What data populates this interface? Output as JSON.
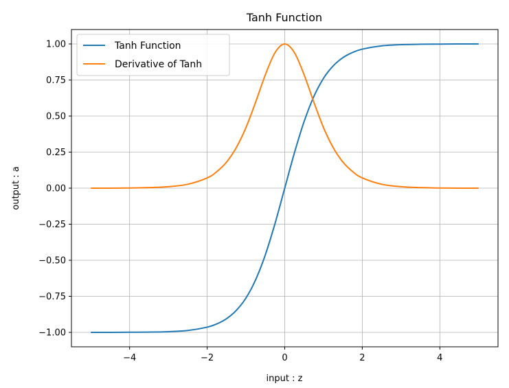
{
  "chart_data": {
    "type": "line",
    "title": "Tanh Function",
    "xlabel": "input : z",
    "ylabel": "output : a",
    "xlim": [
      -5.5,
      5.5
    ],
    "ylim": [
      -1.1,
      1.1
    ],
    "xticks": [
      -4,
      -2,
      0,
      2,
      4
    ],
    "xtick_labels": [
      "−4",
      "−2",
      "0",
      "2",
      "4"
    ],
    "yticks": [
      1.0,
      0.75,
      0.5,
      0.25,
      0.0,
      -0.25,
      -0.5,
      -0.75,
      -1.0
    ],
    "ytick_labels": [
      "1.00",
      "0.75",
      "0.50",
      "0.25",
      "0.00",
      "−0.25",
      "−0.50",
      "−0.75",
      "−1.00"
    ],
    "grid": true,
    "legend_position": "top-left",
    "x": [
      -5,
      -4.5,
      -4,
      -3.5,
      -3,
      -2.5,
      -2,
      -1.75,
      -1.5,
      -1.25,
      -1,
      -0.75,
      -0.5,
      -0.25,
      0,
      0.25,
      0.5,
      0.75,
      1,
      1.25,
      1.5,
      1.75,
      2,
      2.5,
      3,
      3.5,
      4,
      4.5,
      5
    ],
    "series": [
      {
        "name": "Tanh Function",
        "color": "#1f77b4",
        "values": [
          -1.0,
          -1.0,
          -0.999,
          -0.998,
          -0.995,
          -0.987,
          -0.964,
          -0.941,
          -0.905,
          -0.848,
          -0.762,
          -0.635,
          -0.462,
          -0.245,
          0.0,
          0.245,
          0.462,
          0.635,
          0.762,
          0.848,
          0.905,
          0.941,
          0.964,
          0.987,
          0.995,
          0.998,
          0.999,
          1.0,
          1.0
        ]
      },
      {
        "name": "Derivative of Tanh",
        "color": "#ff7f0e",
        "values": [
          0.0,
          0.0,
          0.001,
          0.004,
          0.01,
          0.027,
          0.071,
          0.115,
          0.181,
          0.281,
          0.42,
          0.597,
          0.786,
          0.94,
          1.0,
          0.94,
          0.786,
          0.597,
          0.42,
          0.281,
          0.181,
          0.115,
          0.071,
          0.027,
          0.01,
          0.004,
          0.001,
          0.0,
          0.0
        ]
      }
    ]
  }
}
